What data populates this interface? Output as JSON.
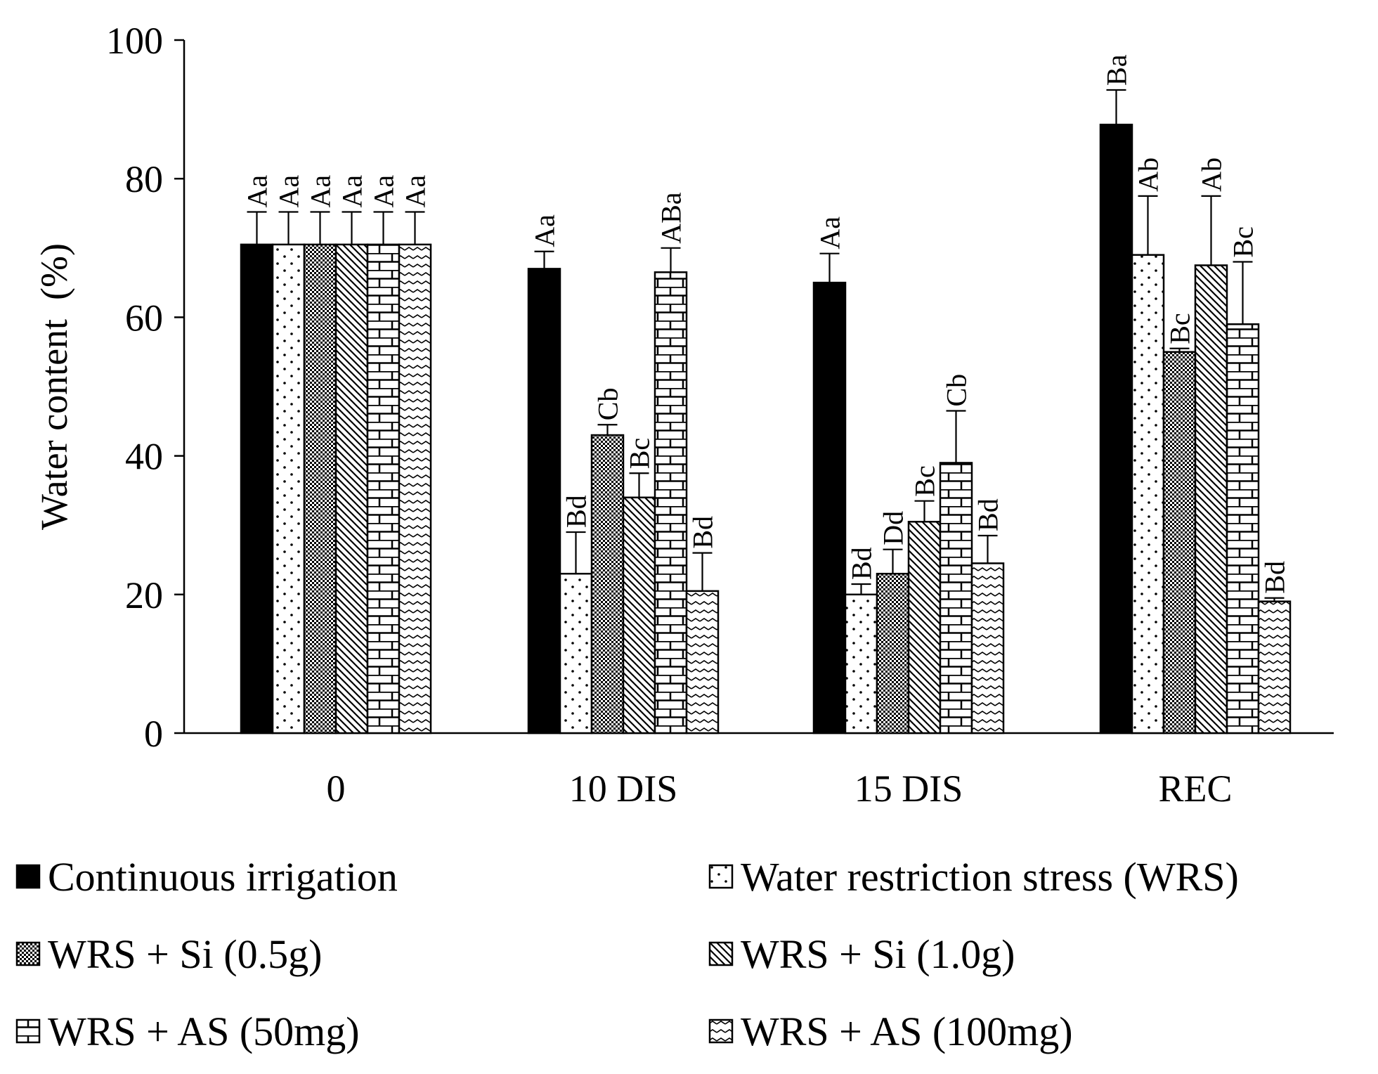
{
  "chart_data": {
    "type": "bar",
    "title": "",
    "xlabel": "",
    "ylabel": "Water content  (%)",
    "ylim": [
      0,
      100
    ],
    "yticks": [
      "0",
      "20",
      "40",
      "60",
      "80",
      "100"
    ],
    "categories": [
      "0",
      "10 DIS",
      "15 DIS",
      "REC"
    ],
    "series": [
      {
        "name": "Continuous irrigation",
        "pattern": "solid",
        "values": [
          70.5,
          67.0,
          65.0,
          87.8
        ],
        "errors": [
          4.7,
          2.5,
          4.2,
          5.0
        ],
        "labels": [
          "Aa",
          "Aa",
          "Aa",
          "Ba"
        ]
      },
      {
        "name": "Water restriction stress (WRS)",
        "pattern": "dots",
        "values": [
          70.5,
          23.0,
          20.0,
          69.0
        ],
        "errors": [
          4.7,
          6.0,
          1.5,
          8.5
        ],
        "labels": [
          "Aa",
          "Bd",
          "Bd",
          "Ab"
        ]
      },
      {
        "name": "WRS + Si (0.5g)",
        "pattern": "checker",
        "values": [
          70.5,
          43.0,
          23.0,
          55.0
        ],
        "errors": [
          4.7,
          1.5,
          3.5,
          0.5
        ],
        "labels": [
          "Aa",
          "Cb",
          "Dd",
          "Bc"
        ]
      },
      {
        "name": "WRS + Si (1.0g)",
        "pattern": "diagonal-down",
        "values": [
          70.5,
          34.0,
          30.5,
          67.5
        ],
        "errors": [
          4.7,
          3.5,
          3.0,
          10.0
        ],
        "labels": [
          "Aa",
          "Bc",
          "Bc",
          "Ab"
        ]
      },
      {
        "name": "WRS + AS (50mg)",
        "pattern": "brick",
        "values": [
          70.5,
          66.5,
          39.0,
          59.0
        ],
        "errors": [
          4.7,
          3.5,
          7.5,
          9.0
        ],
        "labels": [
          "Aa",
          "ABa",
          "Cb",
          "Bc"
        ]
      },
      {
        "name": "WRS + AS (100mg)",
        "pattern": "zigzag",
        "values": [
          70.5,
          20.5,
          24.5,
          19.0
        ],
        "errors": [
          4.7,
          5.5,
          4.0,
          0.5
        ],
        "labels": [
          "Aa",
          "Bd",
          "Bd",
          "Bd"
        ]
      }
    ],
    "legend_position": "bottom",
    "grid": false
  },
  "colors": {
    "bar_stroke": "#000000",
    "bar_fill": "#ffffff",
    "solid_fill": "#000000"
  }
}
